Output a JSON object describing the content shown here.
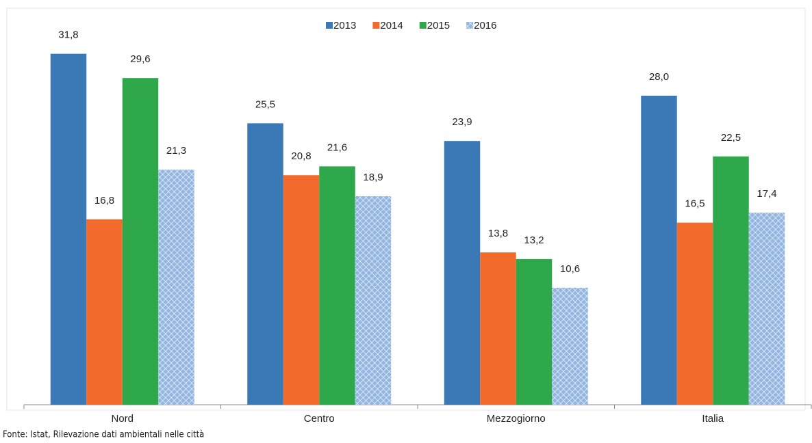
{
  "chart_data": {
    "type": "bar",
    "categories": [
      "Nord",
      "Centro",
      "Mezzogiorno",
      "Italia"
    ],
    "series": [
      {
        "name": "2013",
        "color": "#3a78b6",
        "values": [
          31.8,
          25.5,
          23.9,
          28.0
        ],
        "value_labels": [
          "31,8",
          "25,5",
          "23,9",
          "28,0"
        ]
      },
      {
        "name": "2014",
        "color": "#f26a2c",
        "values": [
          16.8,
          20.8,
          13.8,
          16.5
        ],
        "value_labels": [
          "16,8",
          "20,8",
          "13,8",
          "16,5"
        ]
      },
      {
        "name": "2015",
        "color": "#2fa84b",
        "values": [
          29.6,
          21.6,
          13.2,
          22.5
        ],
        "value_labels": [
          "29,6",
          "21,6",
          "13,2",
          "22,5"
        ]
      },
      {
        "name": "2016",
        "color": "#7fa9dc",
        "hatch": true,
        "values": [
          21.3,
          18.9,
          10.6,
          17.4
        ],
        "value_labels": [
          "21,3",
          "18,9",
          "10,6",
          "17,4"
        ]
      }
    ],
    "ylim": [
      0,
      35
    ],
    "legend": "top",
    "source": "Fonte: Istat, Rilevazione dati ambientali nelle città"
  }
}
